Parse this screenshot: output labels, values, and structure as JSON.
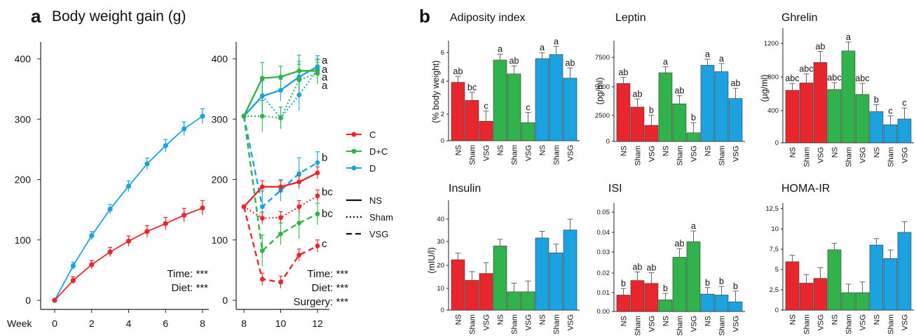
{
  "panel_a": {
    "letter": "a",
    "title": "Body weight gain (g)"
  },
  "panel_b": {
    "letter": "b"
  },
  "legend": {
    "diets": [
      {
        "name": "C",
        "color": "#e8262b"
      },
      {
        "name": "D+C",
        "color": "#2fb34a"
      },
      {
        "name": "D",
        "color": "#1aa3e0"
      }
    ],
    "surgeries": [
      {
        "name": "NS",
        "style": "solid"
      },
      {
        "name": "Sham",
        "style": "dotted"
      },
      {
        "name": "VSG",
        "style": "dashed"
      }
    ]
  },
  "chart_data": [
    {
      "type": "line",
      "xlabel": "Week",
      "ylim": [
        0,
        420
      ],
      "x": [
        0,
        1,
        2,
        3,
        4,
        5,
        6,
        7,
        8
      ],
      "xticks": [
        "0",
        "2",
        "4",
        "6",
        "8"
      ],
      "yticks": [
        "0",
        "100",
        "200",
        "300",
        "400"
      ],
      "series": [
        {
          "name": "D",
          "color": "#1aa3e0",
          "values": [
            0,
            57,
            107,
            151,
            189,
            226,
            256,
            284,
            305
          ]
        },
        {
          "name": "C",
          "color": "#e8262b",
          "values": [
            0,
            33,
            59,
            80,
            98,
            114,
            127,
            141,
            153
          ]
        }
      ],
      "stats": [
        "Time: ***",
        "Diet: ***"
      ]
    },
    {
      "type": "line",
      "xlim": [
        8,
        12
      ],
      "ylim": [
        0,
        420
      ],
      "x": [
        8,
        9,
        10,
        11,
        12
      ],
      "xticks": [
        "8",
        "10",
        "12"
      ],
      "yticks": [
        "0",
        "100",
        "200",
        "300",
        "400"
      ],
      "series": [
        {
          "name": "D NS",
          "diet": "D",
          "style": "solid",
          "values": [
            305,
            338,
            348,
            370,
            387
          ]
        },
        {
          "name": "D Sham",
          "diet": "D",
          "style": "dotted",
          "values": [
            305,
            339,
            302,
            340,
            382
          ]
        },
        {
          "name": "D VSG",
          "diet": "D",
          "style": "dashed",
          "values": [
            305,
            155,
            182,
            210,
            228
          ]
        },
        {
          "name": "D+C NS",
          "diet": "D+C",
          "style": "solid",
          "values": [
            305,
            368,
            370,
            380,
            380
          ]
        },
        {
          "name": "D+C Sham",
          "diet": "D+C",
          "style": "dotted",
          "values": [
            305,
            305,
            302,
            365,
            376
          ]
        },
        {
          "name": "D+C VSG",
          "diet": "D+C",
          "style": "dashed",
          "values": [
            305,
            82,
            110,
            128,
            143
          ]
        },
        {
          "name": "C NS",
          "diet": "C",
          "style": "solid",
          "values": [
            155,
            188,
            188,
            196,
            211
          ]
        },
        {
          "name": "C Sham",
          "diet": "C",
          "style": "dotted",
          "values": [
            155,
            136,
            137,
            155,
            173
          ]
        },
        {
          "name": "C VSG",
          "diet": "C",
          "style": "dashed",
          "values": [
            155,
            35,
            30,
            75,
            90
          ]
        }
      ],
      "end_labels": [
        "a",
        "a",
        "a",
        "a",
        "b",
        "bc",
        "bc",
        "c"
      ],
      "stats": [
        "Time: ***",
        "Diet: ***",
        "Surgery: ***"
      ]
    },
    {
      "type": "bar",
      "title": "Adiposity index",
      "ylabel": "(% body weight)",
      "ylim": [
        0,
        7.2
      ],
      "yticks": [
        "0",
        "2",
        "4",
        "6"
      ],
      "categories": [
        "NS",
        "Sham",
        "VSG",
        "NS",
        "Sham",
        "VSG",
        "NS",
        "Sham",
        "VSG"
      ],
      "values": [
        4.2,
        2.9,
        1.4,
        5.8,
        4.8,
        1.3,
        5.9,
        6.2,
        4.5
      ],
      "labels": [
        "ab",
        "bc",
        "c",
        "a",
        "ab",
        "c",
        "a",
        "a",
        "ab"
      ]
    },
    {
      "type": "bar",
      "title": "Leptin",
      "ylabel": "(pg/ml)",
      "ylim": [
        0,
        9400
      ],
      "yticks": [
        "0",
        "2500",
        "5000",
        "7500"
      ],
      "categories": [
        "NS",
        "Sham",
        "VSG",
        "NS",
        "Sham",
        "VSG",
        "NS",
        "Sham",
        "VSG"
      ],
      "values": [
        5400,
        3200,
        1500,
        6400,
        3500,
        800,
        7100,
        6500,
        4000
      ],
      "labels": [
        "ab",
        "ab",
        "b",
        "a",
        "ab",
        "b",
        "a",
        "a",
        "ab"
      ]
    },
    {
      "type": "bar",
      "title": "Ghrelin",
      "ylabel": "(µg/ml)",
      "ylim": [
        0,
        1400
      ],
      "yticks": [
        "0",
        "400",
        "800",
        "1200"
      ],
      "categories": [
        "NS",
        "Sham",
        "VSG",
        "NS",
        "Sham",
        "VSG",
        "NS",
        "Sham",
        "VSG"
      ],
      "values": [
        640,
        730,
        980,
        650,
        1120,
        590,
        380,
        220,
        290
      ],
      "labels": [
        "abc",
        "abc",
        "ab",
        "abc",
        "a",
        "abc",
        "b",
        "c",
        "c"
      ]
    },
    {
      "type": "bar",
      "title": "Insulin",
      "ylabel": "(mIU/l)",
      "ylim": [
        0,
        48
      ],
      "yticks": [
        "0",
        "10",
        "20",
        "30",
        "40"
      ],
      "categories": [
        "NS",
        "Sham",
        "VSG",
        "NS",
        "Sham",
        "VSG",
        "NS",
        "Sham",
        "VSG"
      ],
      "values": [
        22,
        13,
        16,
        28,
        8,
        8,
        31.5,
        25,
        35
      ],
      "labels": []
    },
    {
      "type": "bar",
      "title": "ISI",
      "ylabel": "",
      "ylim": [
        0,
        0.056
      ],
      "yticks": [
        "0.00",
        "0.01",
        "0.02",
        "0.03",
        "0.04",
        "0.05"
      ],
      "categories": [
        "NS",
        "Sham",
        "VSG",
        "NS",
        "Sham",
        "VSG",
        "NS",
        "Sham",
        "VSG"
      ],
      "values": [
        0.0085,
        0.016,
        0.0145,
        0.006,
        0.028,
        0.036,
        0.009,
        0.0085,
        0.005
      ],
      "labels": [
        "b",
        "ab",
        "ab",
        "b",
        "ab",
        "a",
        "b",
        "b",
        "b"
      ]
    },
    {
      "type": "bar",
      "title": "HOMA-IR",
      "ylabel": "",
      "ylim": [
        0,
        13.5
      ],
      "yticks": [
        "0",
        "2,5",
        "5",
        "7,5",
        "10",
        "12,5"
      ],
      "categories": [
        "NS",
        "Sham",
        "VSG",
        "NS",
        "Sham",
        "VSG",
        "NS",
        "Sham",
        "VSG"
      ],
      "values": [
        6.1,
        3.4,
        4.0,
        7.6,
        2.2,
        2.2,
        8.2,
        6.5,
        9.8
      ],
      "labels": []
    }
  ]
}
